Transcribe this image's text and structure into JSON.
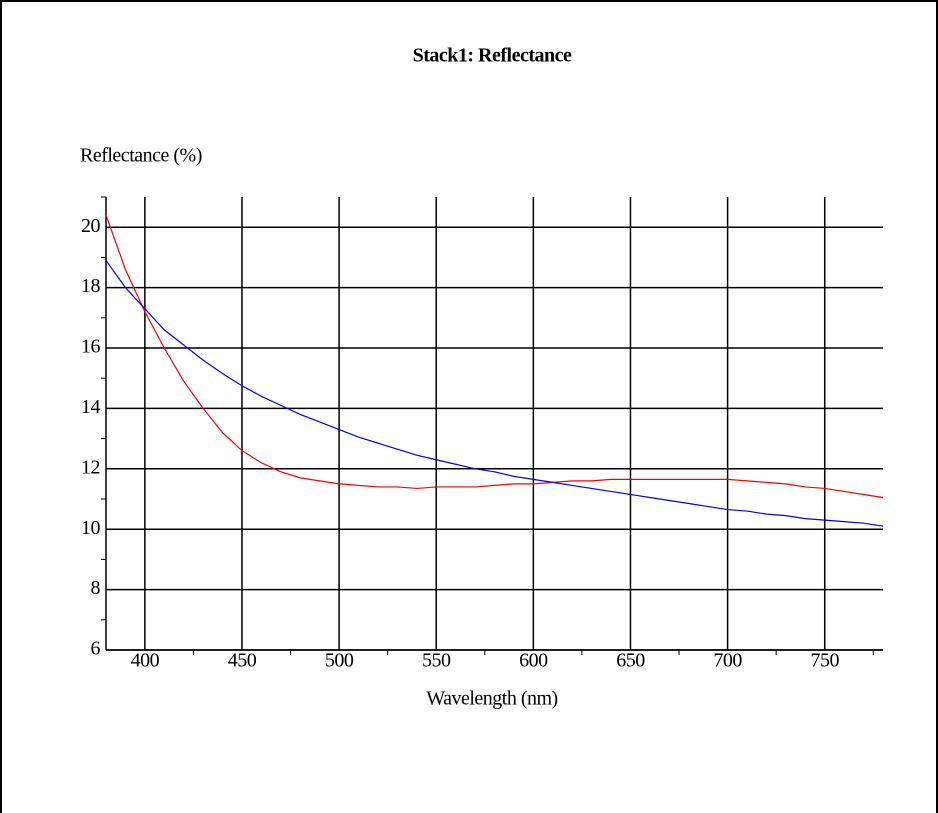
{
  "chart_data": {
    "type": "line",
    "title": "Stack1: Reflectance",
    "xlabel": "Wavelength (nm)",
    "ylabel": "Reflectance (%)",
    "x": [
      380,
      390,
      400,
      410,
      420,
      430,
      440,
      450,
      460,
      470,
      480,
      490,
      500,
      510,
      520,
      530,
      540,
      550,
      560,
      570,
      580,
      590,
      600,
      610,
      620,
      630,
      640,
      650,
      660,
      670,
      680,
      690,
      700,
      710,
      720,
      730,
      740,
      750,
      760,
      770,
      780
    ],
    "series": [
      {
        "color": "#ff0000",
        "values": [
          20.4,
          18.6,
          17.2,
          16.0,
          14.9,
          14.0,
          13.2,
          12.6,
          12.2,
          11.9,
          11.7,
          11.6,
          11.5,
          11.45,
          11.4,
          11.4,
          11.35,
          11.4,
          11.4,
          11.4,
          11.45,
          11.5,
          11.5,
          11.55,
          11.6,
          11.6,
          11.65,
          11.65,
          11.65,
          11.65,
          11.65,
          11.65,
          11.65,
          11.6,
          11.55,
          11.5,
          11.4,
          11.35,
          11.25,
          11.15,
          11.05
        ]
      },
      {
        "color": "#0000ff",
        "values": [
          18.9,
          18.0,
          17.3,
          16.6,
          16.1,
          15.6,
          15.15,
          14.75,
          14.4,
          14.1,
          13.8,
          13.55,
          13.3,
          13.05,
          12.85,
          12.65,
          12.45,
          12.3,
          12.15,
          12.0,
          11.9,
          11.75,
          11.65,
          11.55,
          11.45,
          11.35,
          11.25,
          11.15,
          11.05,
          10.95,
          10.85,
          10.75,
          10.65,
          10.6,
          10.5,
          10.45,
          10.35,
          10.3,
          10.25,
          10.2,
          10.1
        ]
      }
    ],
    "xlim": [
      380,
      780
    ],
    "xticks": [
      400,
      450,
      500,
      550,
      600,
      650,
      700,
      750
    ],
    "xminorticks": [
      425,
      475,
      525,
      575,
      625,
      675,
      725,
      775
    ],
    "ylim": [
      6,
      21
    ],
    "yticks": [
      6,
      8,
      10,
      12,
      14,
      16,
      18,
      20
    ],
    "yminorticks": [
      7,
      9,
      11,
      13,
      15,
      17,
      19,
      21
    ],
    "grid": true
  }
}
